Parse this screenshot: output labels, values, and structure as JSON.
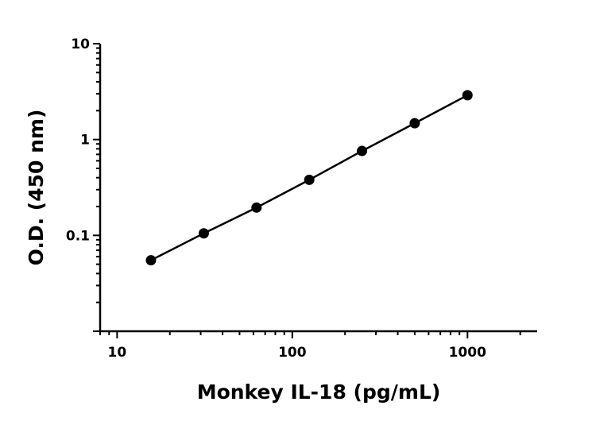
{
  "chart_data": {
    "type": "scatter",
    "title": "",
    "xlabel": "Monkey IL-18 (pg/mL)",
    "ylabel": "O.D. (450 nm)",
    "xscale": "log",
    "yscale": "log",
    "xlim": [
      8,
      2500
    ],
    "ylim": [
      0.01,
      10
    ],
    "xticks": [
      {
        "value": 10,
        "label": "10"
      },
      {
        "value": 100,
        "label": "100"
      },
      {
        "value": 1000,
        "label": "1000"
      }
    ],
    "yticks": [
      {
        "value": 0.1,
        "label": "0.1"
      },
      {
        "value": 1,
        "label": "1"
      },
      {
        "value": 10,
        "label": "10"
      }
    ],
    "grid": false,
    "legend": "none",
    "series": [
      {
        "x": [
          15.6,
          31.25,
          62.5,
          125,
          250,
          500,
          1000
        ],
        "y": [
          0.055,
          0.105,
          0.195,
          0.38,
          0.76,
          1.48,
          2.9
        ],
        "marker": "circle",
        "color": "#000000",
        "fit_line": true
      }
    ]
  }
}
